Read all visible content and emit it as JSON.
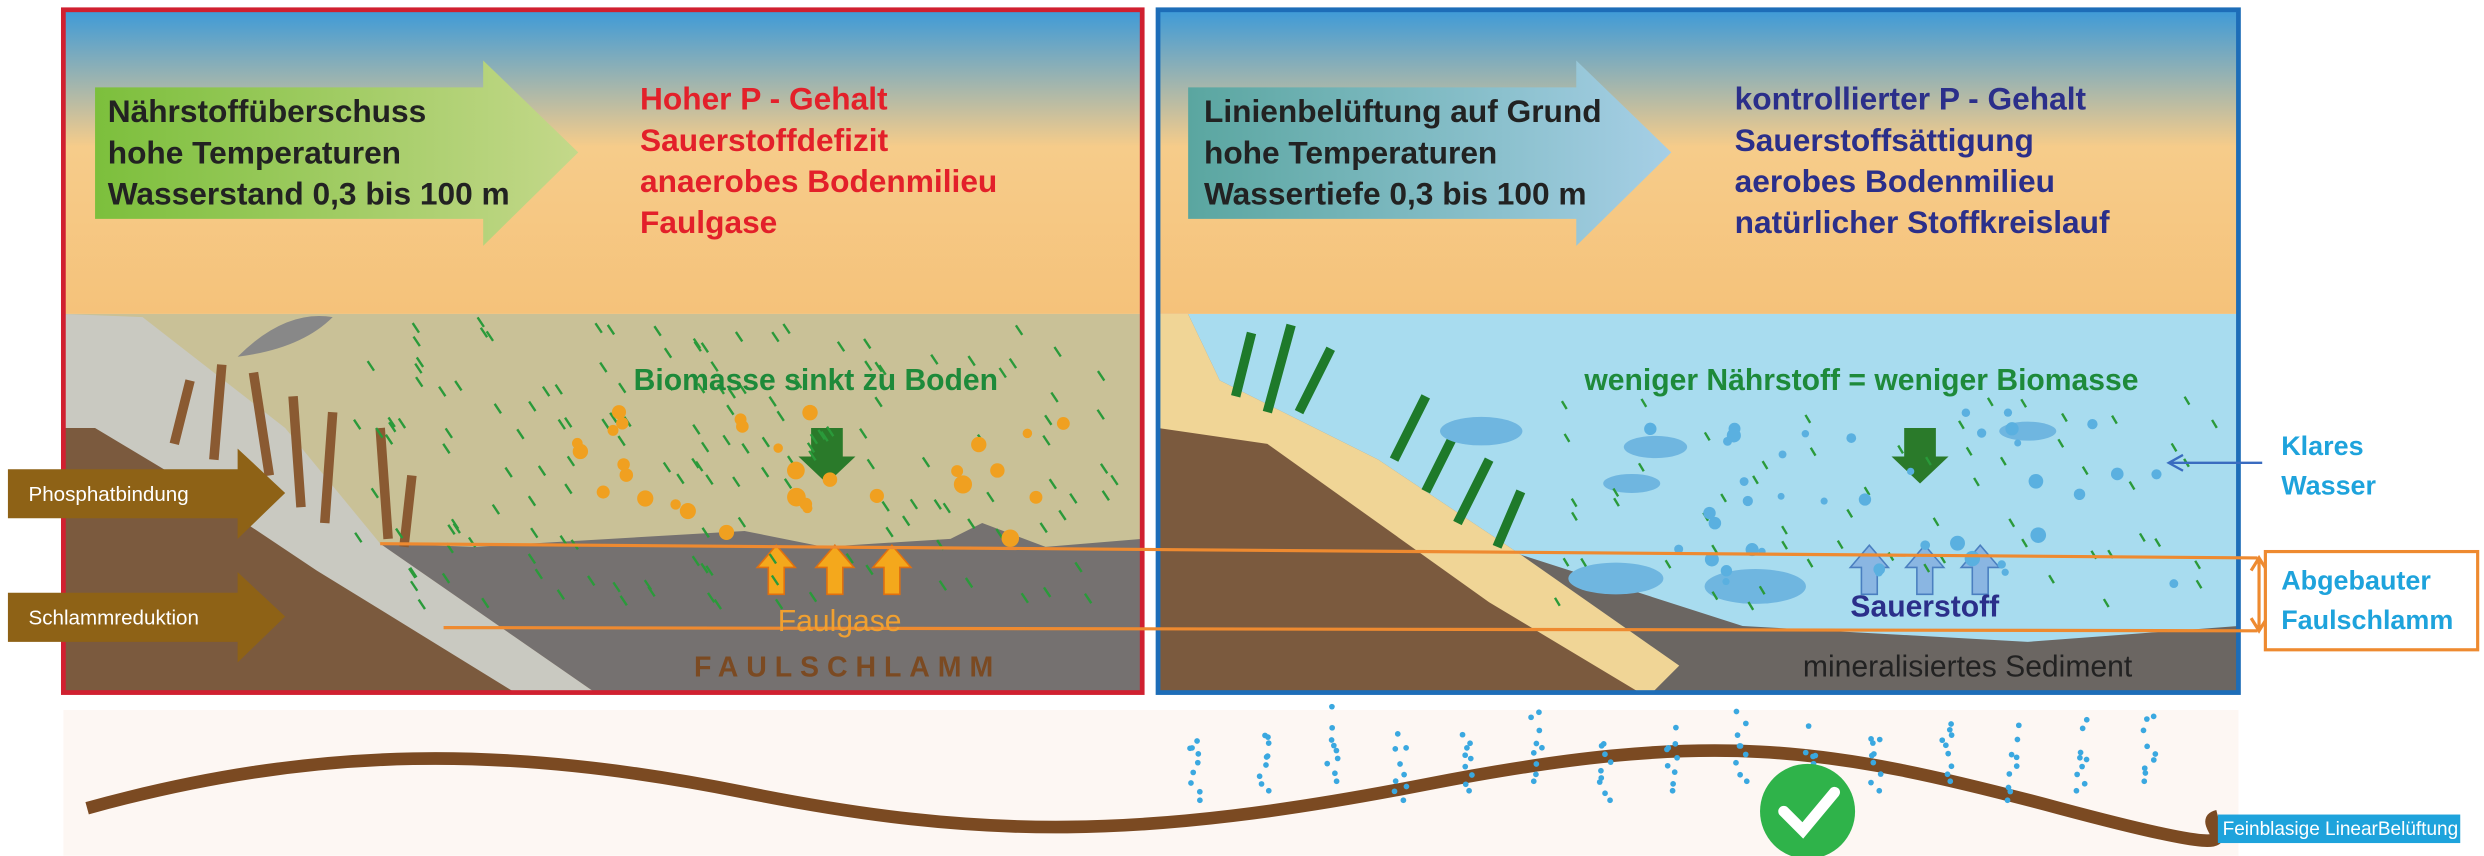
{
  "left_panel": {
    "arrow_text": [
      "Nährstoffüberschuss",
      "hohe Temperaturen",
      "Wasserstand 0,3 bis 100 m"
    ],
    "status_text": [
      "Hoher P - Gehalt",
      "Sauerstoffdefizit",
      "anaerobes Bodenmilieu",
      "Faulgase"
    ],
    "caption": "Biomasse sinkt zu Boden",
    "gas_label": "Faulgase",
    "sludge_label": "FAULSCHLAMM"
  },
  "right_panel": {
    "arrow_text": [
      "Linienbelüftung auf Grund",
      "hohe Temperaturen",
      "Wassertiefe 0,3 bis 100 m"
    ],
    "status_text": [
      "kontrollierter P - Gehalt",
      "Sauerstoffsättigung",
      "aerobes Bodenmilieu",
      "natürlicher Stoffkreislauf"
    ],
    "caption": "weniger Nährstoff = weniger Biomasse",
    "oxygen_label": "Sauerstoff",
    "sediment_label": "mineralisiertes Sediment"
  },
  "side_labels": {
    "phosphate_binding": "Phosphatbindung",
    "sludge_reduction": "Schlammreduktion",
    "clear_water": [
      "Klares",
      "Wasser"
    ],
    "degraded_sludge": [
      "Abgebauter",
      "Faulschlamm"
    ]
  },
  "footer": {
    "aeration_label": "Feinblasige LinearBelüftung"
  }
}
